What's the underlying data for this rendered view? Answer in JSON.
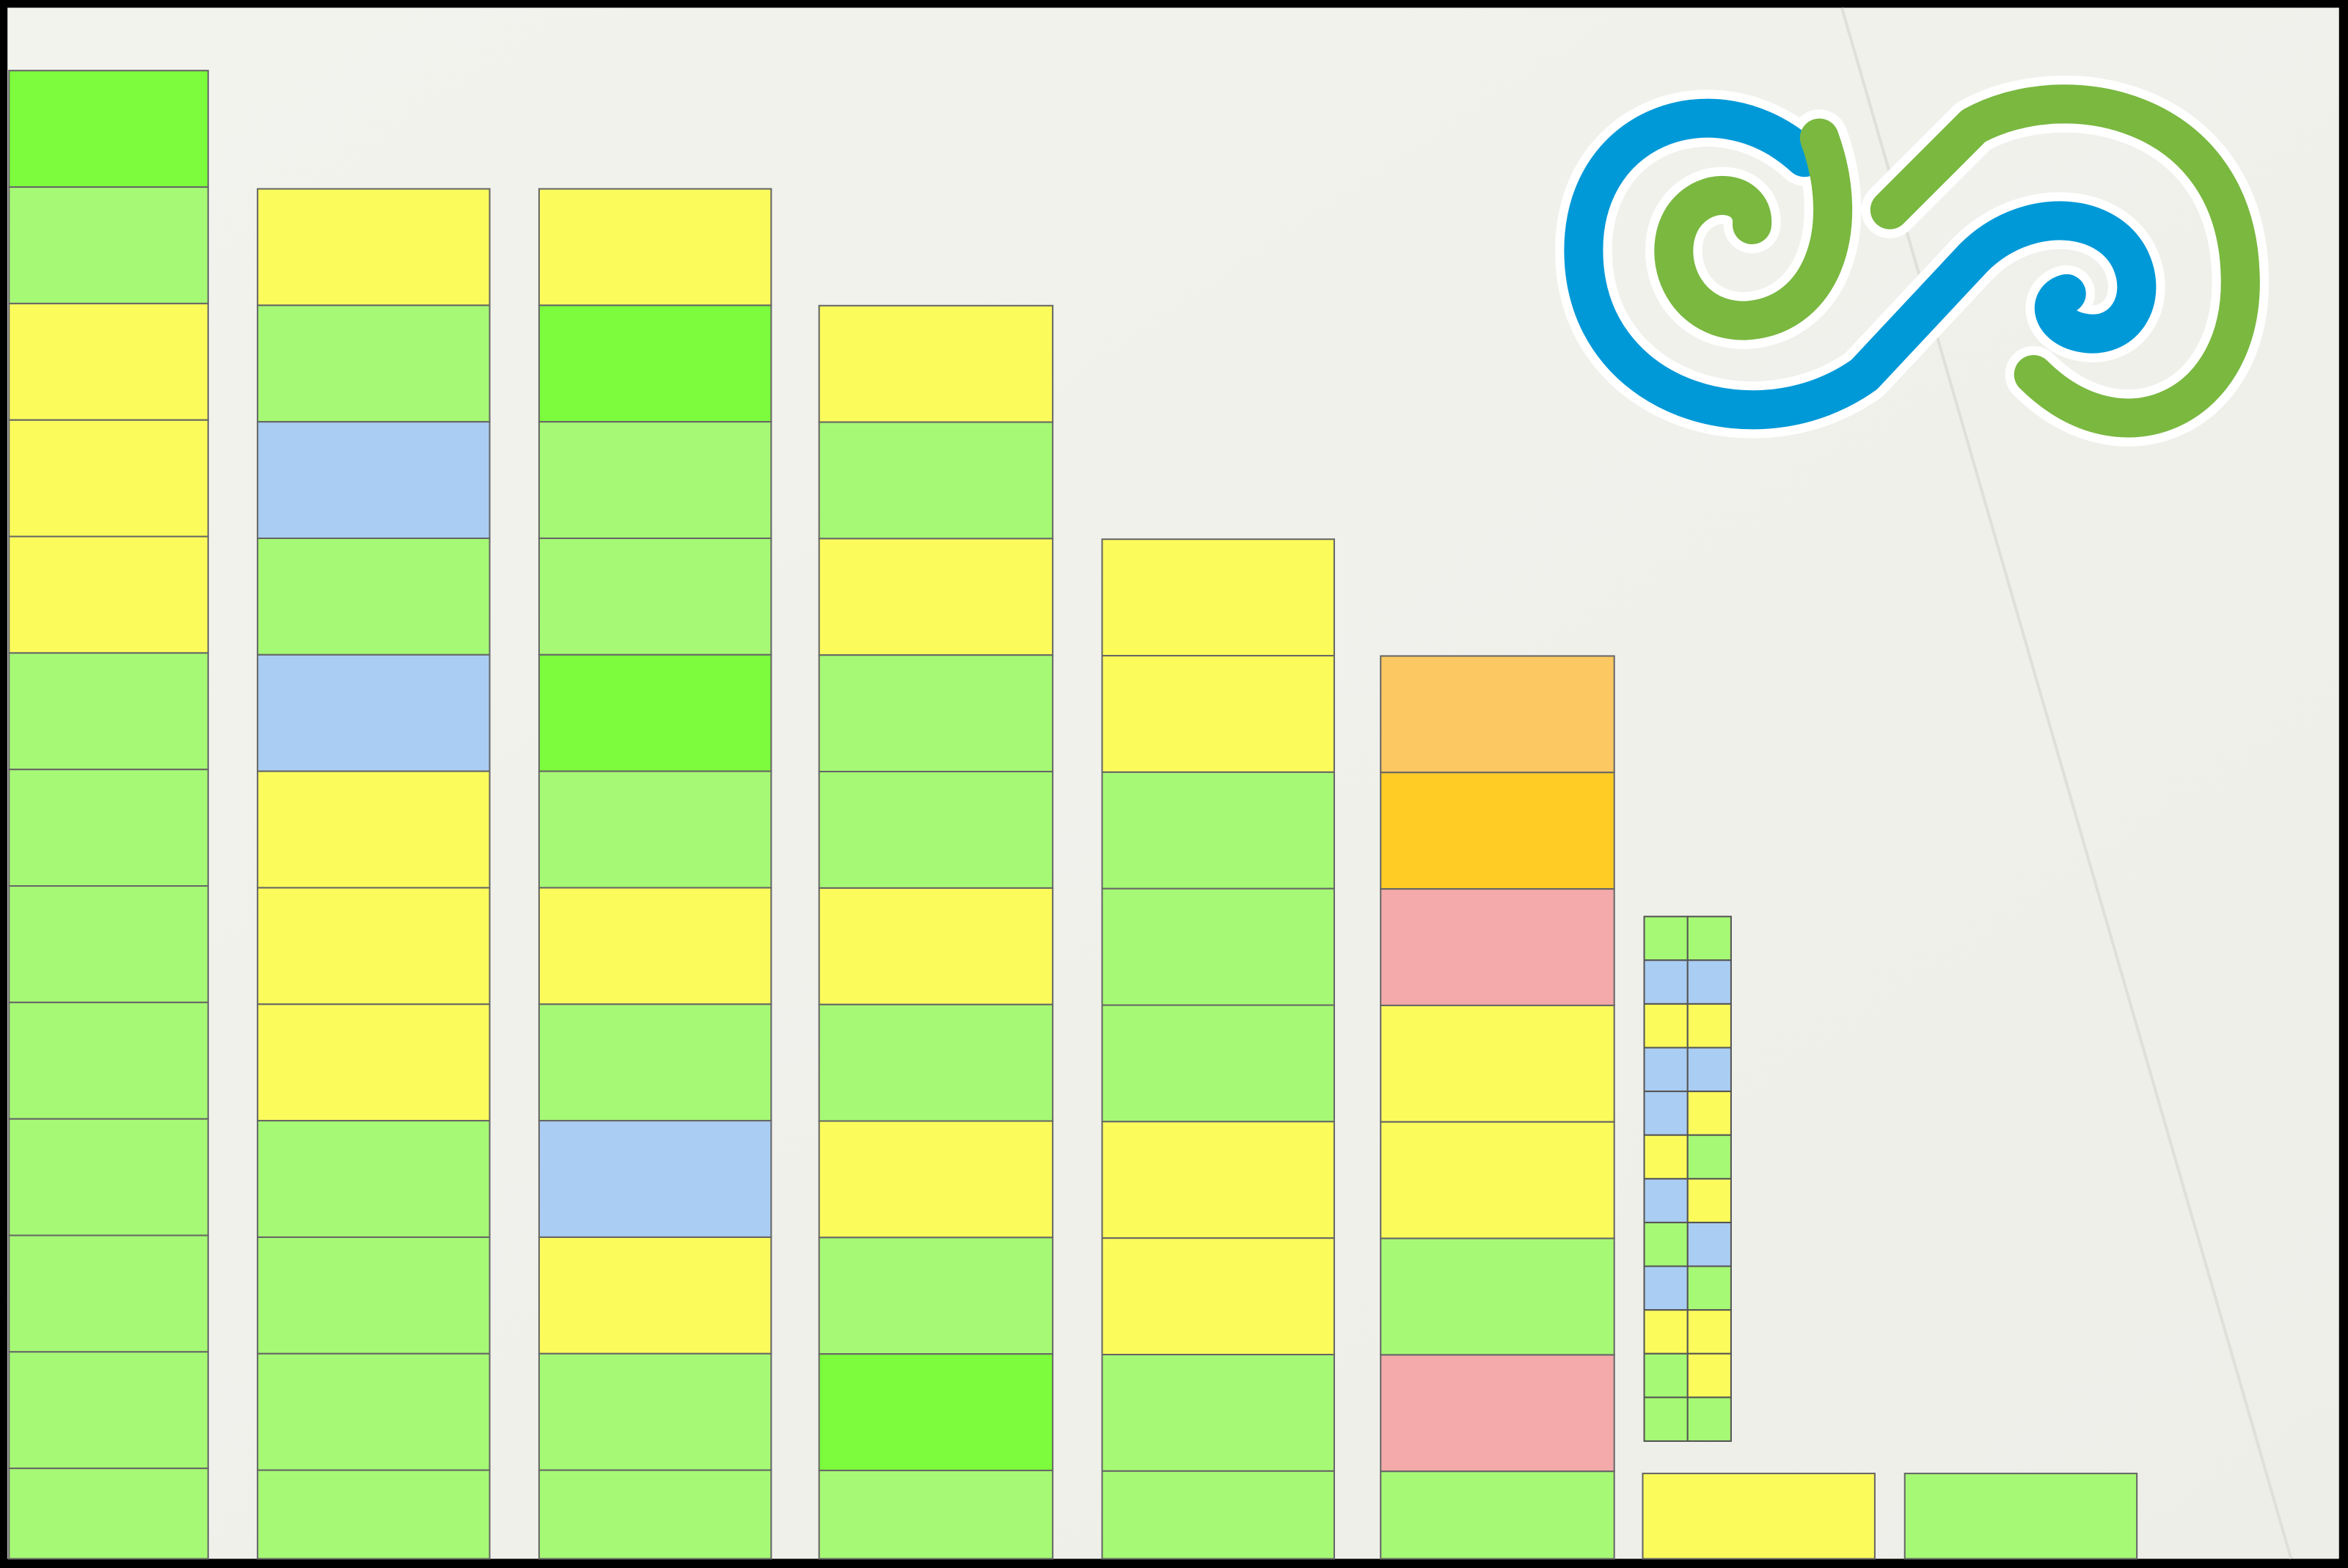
{
  "columns": [
    {
      "cells": [
        "#7cfc3c",
        "#a6f975",
        "#fbfb5c",
        "#fbfb5c",
        "#fbfb5c",
        "#a6f975",
        "#a6f975",
        "#a6f975",
        "#a6f975",
        "#a6f975",
        "#a6f975",
        "#a6f975",
        "#a6f975"
      ]
    },
    {
      "cells": [
        "#fbfb5c",
        "#a6f975",
        "#aacdf3",
        "#a6f975",
        "#aacdf3",
        "#fbfb5c",
        "#fbfb5c",
        "#fbfb5c",
        "#a6f975",
        "#a6f975",
        "#a6f975",
        "#a6f975"
      ]
    },
    {
      "cells": [
        "#fbfb5c",
        "#7cfc3c",
        "#a6f975",
        "#a6f975",
        "#7cfc3c",
        "#a6f975",
        "#fbfb5c",
        "#a6f975",
        "#aacdf3",
        "#fbfb5c",
        "#a6f975",
        "#a6f975"
      ]
    },
    {
      "cells": [
        "#fbfb5c",
        "#a6f975",
        "#fbfb5c",
        "#a6f975",
        "#a6f975",
        "#fbfb5c",
        "#a6f975",
        "#fbfb5c",
        "#a6f975",
        "#7cfc3c",
        "#a6f975"
      ]
    },
    {
      "cells": [
        "#fbfb5c",
        "#fbfb5c",
        "#a6f975",
        "#a6f975",
        "#a6f975",
        "#fbfb5c",
        "#fbfb5c",
        "#a6f975",
        "#a6f975"
      ]
    },
    {
      "cells": [
        "#fbc862",
        "#ffcc25",
        "#f4aaaa",
        "#fbfb5c",
        "#fbfb5c",
        "#a6f975",
        "#f4aaaa",
        "#a6f975"
      ]
    }
  ],
  "mini_grid": [
    [
      "#a6f975",
      "#a6f975"
    ],
    [
      "#aacdf3",
      "#aacdf3"
    ],
    [
      "#fbfb5c",
      "#fbfb5c"
    ],
    [
      "#aacdf3",
      "#aacdf3"
    ],
    [
      "#aacdf3",
      "#fbfb5c"
    ],
    [
      "#fbfb5c",
      "#a6f975"
    ],
    [
      "#aacdf3",
      "#fbfb5c"
    ],
    [
      "#a6f975",
      "#aacdf3"
    ],
    [
      "#aacdf3",
      "#a6f975"
    ],
    [
      "#fbfb5c",
      "#fbfb5c"
    ],
    [
      "#a6f975",
      "#fbfb5c"
    ],
    [
      "#a6f975",
      "#a6f975"
    ]
  ],
  "bottom_cells": [
    "#fbfb5c",
    "#a6f975"
  ]
}
